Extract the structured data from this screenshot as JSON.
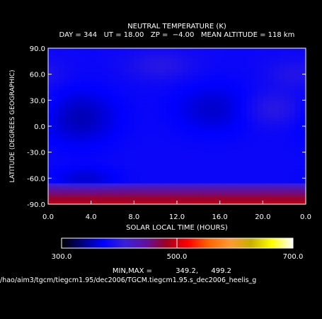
{
  "chart_data": {
    "type": "heatmap",
    "title": "NEUTRAL TEMPERATURE (K)",
    "subtitle": "DAY = 344   UT = 18.00   ZP =  −4.00   MEAN ALTITUDE = 118 km",
    "xlabel": "SOLAR LOCAL TIME (HOURS)",
    "ylabel": "LATITUDE (DEGREES GEOGRAPHIC)",
    "xlim": [
      0,
      24
    ],
    "ylim": [
      -90,
      90
    ],
    "x_ticks": [
      "0.0",
      "4.0",
      "8.0",
      "12.0",
      "16.0",
      "20.0",
      "0.0"
    ],
    "y_ticks": [
      "90.0",
      "60.0",
      "30.0",
      "0.0",
      "-30.0",
      "-60.0",
      "-90.0"
    ],
    "colorbar": {
      "min": 300.0,
      "max": 700.0,
      "tick_labels": [
        "300.0",
        "500.0",
        "700.0"
      ],
      "colors": [
        "#000000",
        "#000080",
        "#0000ff",
        "#3820d8",
        "#6010a0",
        "#a00020",
        "#ff0000",
        "#ff6600",
        "#ff9933",
        "#c8b000",
        "#ffff00",
        "#ffffff"
      ]
    },
    "min_label": "MIN,MAX =",
    "min_value": "349.2,",
    "max_value": "499.2",
    "field_min": 349.2,
    "field_max": 499.2,
    "features": [
      {
        "lt": 3.0,
        "lat": 10,
        "value": 352,
        "sx": 2.4,
        "sy": 22
      },
      {
        "lt": 3.5,
        "lat": -60,
        "value": 360,
        "sx": 2.0,
        "sy": 9
      },
      {
        "lt": 15.5,
        "lat": 20,
        "value": 358,
        "sx": 2.6,
        "sy": 20
      },
      {
        "lt": 21.0,
        "lat": 20,
        "value": 402,
        "sx": 2.0,
        "sy": 14
      },
      {
        "lt": 10.5,
        "lat": 70,
        "value": 398,
        "sx": 2.2,
        "sy": 12
      },
      {
        "lt": 23.0,
        "lat": 60,
        "value": 395,
        "sx": 1.8,
        "sy": 12
      }
    ],
    "background_value": 380,
    "south_band": {
      "lat_start": -65,
      "peak_value": 495
    },
    "path_label": "/hao/aim3/tgcm/tiegcm1.95/dec2006/TGCM.tiegcm1.95.s_dec2006_heelis_g"
  }
}
